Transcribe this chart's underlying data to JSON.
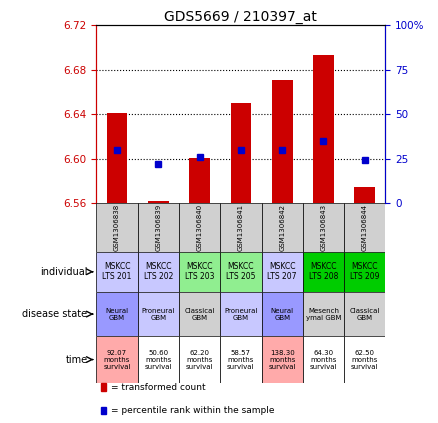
{
  "title": "GDS5669 / 210397_at",
  "samples": [
    "GSM1306838",
    "GSM1306839",
    "GSM1306840",
    "GSM1306841",
    "GSM1306842",
    "GSM1306843",
    "GSM1306844"
  ],
  "transformed_count": [
    6.641,
    6.562,
    6.601,
    6.65,
    6.671,
    6.693,
    6.574
  ],
  "percentile_rank": [
    30,
    22,
    26,
    30,
    30,
    35,
    24
  ],
  "ylim_left": [
    6.56,
    6.72
  ],
  "ylim_right": [
    0,
    100
  ],
  "yticks_left": [
    6.56,
    6.6,
    6.64,
    6.68,
    6.72
  ],
  "yticks_right": [
    0,
    25,
    50,
    75,
    100
  ],
  "individual_labels": [
    "MSKCC\nLTS 201",
    "MSKCC\nLTS 202",
    "MSKCC\nLTS 203",
    "MSKCC\nLTS 205",
    "MSKCC\nLTS 207",
    "MSKCC\nLTS 208",
    "MSKCC\nLTS 209"
  ],
  "individual_colors": [
    "#c8c8ff",
    "#c8c8ff",
    "#90ee90",
    "#90ee90",
    "#c8c8ff",
    "#00cc00",
    "#00cc00"
  ],
  "disease_state_labels": [
    "Neural\nGBM",
    "Proneural\nGBM",
    "Classical\nGBM",
    "Proneural\nGBM",
    "Neural\nGBM",
    "Mesench\nymal GBM",
    "Classical\nGBM"
  ],
  "disease_state_colors": [
    "#9999ff",
    "#c8c8ff",
    "#d0d0d0",
    "#c8c8ff",
    "#9999ff",
    "#d0d0d0",
    "#d0d0d0"
  ],
  "time_labels": [
    "92.07\nmonths\nsurvival",
    "50.60\nmonths\nsurvival",
    "62.20\nmonths\nsurvival",
    "58.57\nmonths\nsurvival",
    "138.30\nmonths\nsurvival",
    "64.30\nmonths\nsurvival",
    "62.50\nmonths\nsurvival"
  ],
  "time_colors": [
    "#ffaaaa",
    "#ffffff",
    "#ffffff",
    "#ffffff",
    "#ffaaaa",
    "#ffffff",
    "#ffffff"
  ],
  "bar_color": "#cc0000",
  "dot_color": "#0000cc",
  "background_color": "#ffffff",
  "grid_color": "#000000",
  "left_axis_color": "#cc0000",
  "right_axis_color": "#0000cc",
  "legend_items": [
    "transformed count",
    "percentile rank within the sample"
  ],
  "legend_colors": [
    "#cc0000",
    "#0000cc"
  ],
  "gsm_row_color": "#d0d0d0",
  "row_labels": [
    "individual",
    "disease state",
    "time"
  ]
}
